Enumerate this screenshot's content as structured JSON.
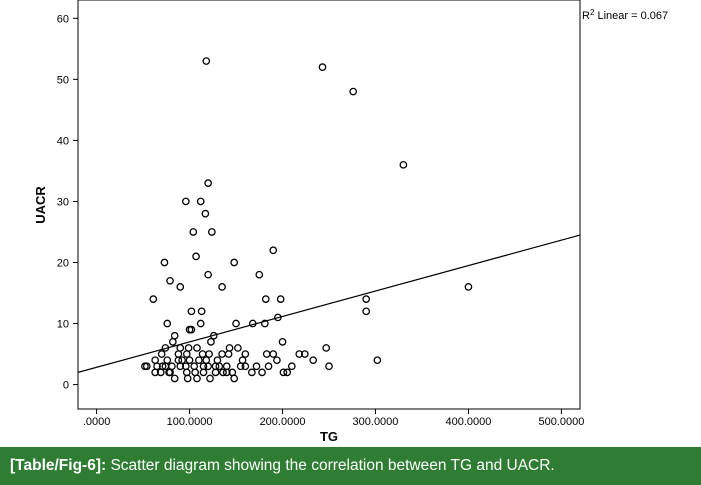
{
  "chart_data": {
    "type": "scatter",
    "xlabel": "TG",
    "ylabel": "UACR",
    "xlim": [
      -20,
      520
    ],
    "ylim": [
      -4,
      63
    ],
    "x_ticks": [
      0,
      100,
      200,
      300,
      400,
      500
    ],
    "x_tick_labels": [
      ".0000",
      "100.0000",
      "200.0000",
      "300.0000",
      "400.0000",
      "500.0000"
    ],
    "y_ticks": [
      0,
      10,
      20,
      30,
      40,
      50,
      60
    ],
    "y_tick_labels": [
      "0",
      "10",
      "20",
      "30",
      "40",
      "50",
      "60"
    ],
    "grid": false,
    "fit_line": {
      "label": "R² Linear = 0.067",
      "x": [
        -20,
        520
      ],
      "y": [
        2,
        24.5
      ]
    },
    "x": [
      118,
      243,
      276,
      330,
      120,
      96,
      112,
      117,
      124,
      104,
      120,
      73,
      107,
      148,
      175,
      190,
      90,
      135,
      79,
      182,
      198,
      400,
      290,
      290,
      61,
      113,
      168,
      150,
      181,
      76,
      112,
      102,
      126,
      195,
      157,
      114,
      84,
      100,
      302,
      97,
      247,
      143,
      200,
      108,
      63,
      70,
      90,
      152,
      88,
      183,
      76,
      233,
      250,
      224,
      201,
      120,
      65,
      54,
      71,
      90,
      105,
      132,
      160,
      172,
      185,
      210,
      81,
      96,
      115,
      140,
      155,
      79,
      106,
      136,
      178,
      78,
      115,
      146,
      205,
      69,
      97,
      128,
      167,
      194,
      52,
      74,
      88,
      100,
      118,
      130,
      142,
      160,
      190,
      218,
      63,
      98,
      122,
      148,
      84,
      108,
      140,
      74,
      123,
      82,
      99,
      121,
      135,
      92,
      110,
      128,
      102
    ],
    "y": [
      53,
      52,
      48,
      36,
      33,
      30,
      30,
      28,
      25,
      25,
      18,
      20,
      21,
      20,
      18,
      22,
      16,
      16,
      17,
      14,
      14,
      16,
      14,
      12,
      14,
      12,
      10,
      10,
      10,
      10,
      10,
      9,
      8,
      11,
      4,
      5,
      8,
      9,
      4,
      5,
      6,
      6,
      7,
      6,
      4,
      5,
      6,
      6,
      5,
      5,
      4,
      4,
      3,
      5,
      2,
      3,
      3,
      3,
      3,
      3,
      3,
      3,
      3,
      3,
      3,
      3,
      3,
      3,
      3,
      3,
      3,
      2,
      2,
      2,
      2,
      2,
      2,
      2,
      2,
      2,
      2,
      2,
      2,
      4,
      3,
      3,
      4,
      4,
      4,
      4,
      5,
      5,
      5,
      5,
      2,
      1,
      1,
      1,
      1,
      1,
      2,
      6,
      7,
      7,
      6,
      5,
      5,
      4,
      4,
      3,
      12
    ]
  },
  "caption": {
    "label": "[Table/Fig-6]:",
    "text": " Scatter diagram showing the correlation between TG and UACR."
  },
  "colors": {
    "caption_bg": "#2e7d32",
    "caption_text": "#ffffff",
    "plot_bg": "#ffffff",
    "marker": "#000000"
  }
}
